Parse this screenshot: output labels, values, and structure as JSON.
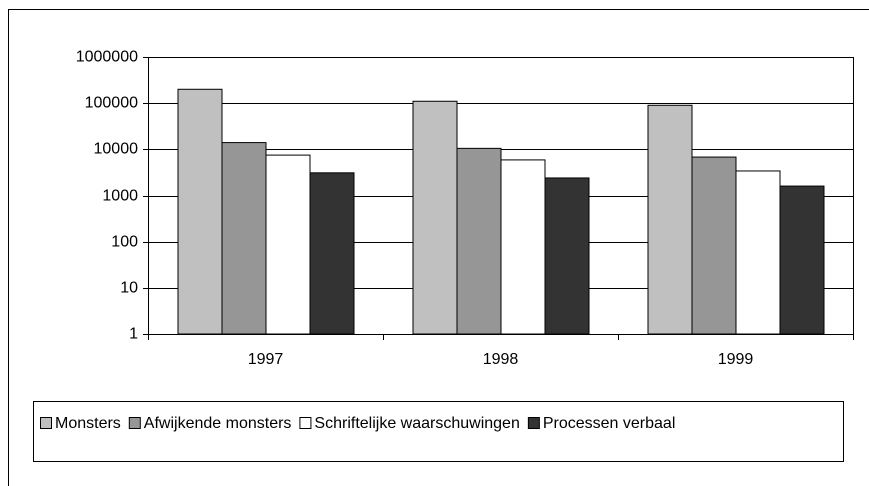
{
  "chart_data": {
    "type": "bar",
    "categories": [
      "1997",
      "1998",
      "1999"
    ],
    "series": [
      {
        "name": "Monsters",
        "color": "#c0c0c0",
        "values": [
          200000,
          110000,
          90000
        ]
      },
      {
        "name": "Afwijkende monsters",
        "color": "#969696",
        "values": [
          14000,
          10500,
          6800
        ]
      },
      {
        "name": "Schriftelijke waarschuwingen",
        "color": "#ffffff",
        "values": [
          7500,
          5900,
          3400
        ]
      },
      {
        "name": "Processen verbaal",
        "color": "#333333",
        "values": [
          3100,
          2400,
          1600
        ]
      }
    ],
    "ylim": [
      1,
      1000000
    ],
    "yticks": [
      1,
      10,
      100,
      1000,
      10000,
      100000,
      1000000
    ],
    "log_y": true,
    "grid": true,
    "legend": "bottom"
  }
}
